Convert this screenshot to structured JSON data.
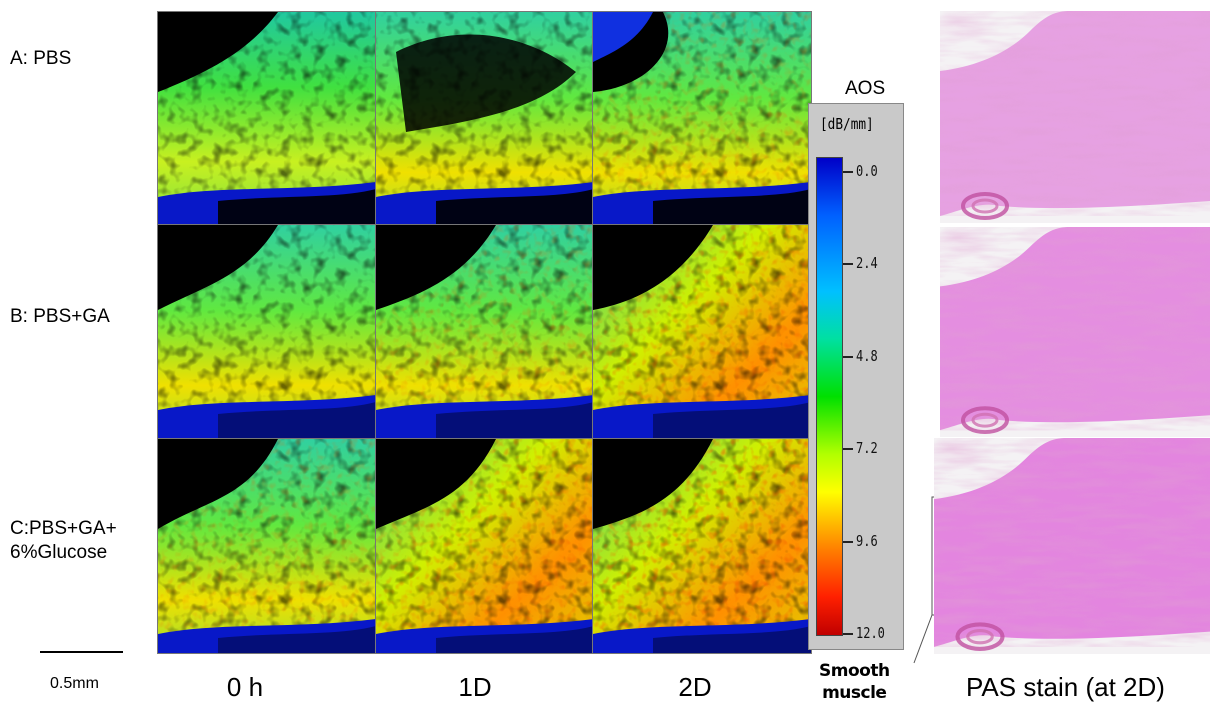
{
  "rows": [
    {
      "label": "A: PBS"
    },
    {
      "label": "B: PBS+GA"
    },
    {
      "label": "C:PBS+GA+\n6%Glucose"
    }
  ],
  "columns": [
    "0 h",
    "1D",
    "2D"
  ],
  "scale_bar": {
    "label": "0.5mm"
  },
  "colorbar": {
    "title": "AOS",
    "unit": "[dB/mm]",
    "ticks": [
      "0.0",
      "2.4",
      "4.8",
      "7.2",
      "9.6",
      "12.0"
    ]
  },
  "annotation": {
    "line1": "Smooth",
    "line2": "muscle"
  },
  "pas_label": "PAS stain (at 2D)"
}
